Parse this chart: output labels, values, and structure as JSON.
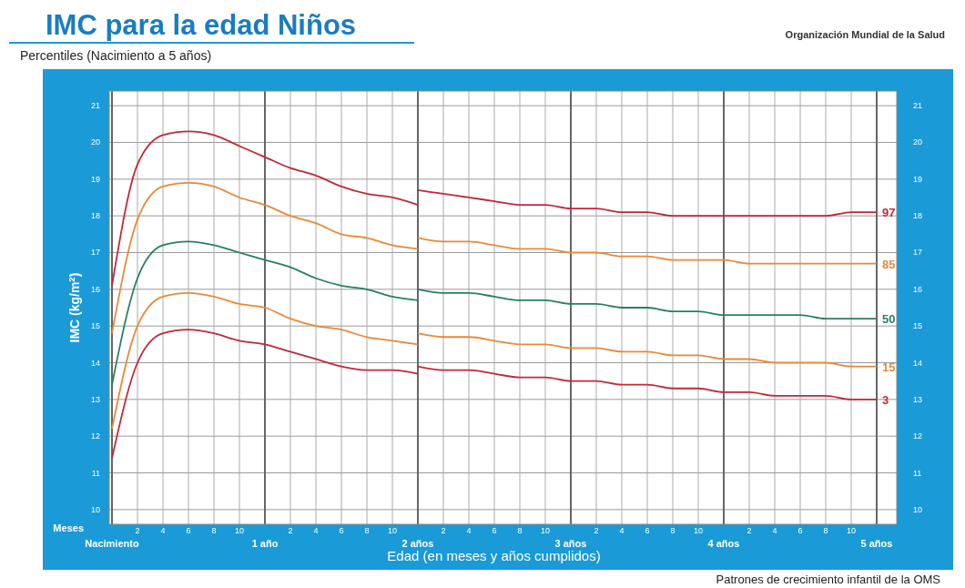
{
  "chart_data": {
    "type": "line",
    "title": "IMC para la edad Niños",
    "subtitle": "Percentiles (Nacimiento a 5 años)",
    "xlabel": "Edad (en meses y años cumplidos)",
    "ylabel": "IMC (kg/m$^{2}$)",
    "x2label": "Meses",
    "annotations": [
      "Patrones de crecimiento infantil de la OMS",
      "Organización Mundial de la Salud"
    ],
    "categories": [
      null,
      "2",
      "4",
      "6",
      "8",
      "10",
      null,
      "2",
      "4",
      "6",
      "8",
      "10",
      null,
      "2",
      "4",
      "6",
      "8",
      "10",
      null,
      "2",
      "4",
      "6",
      "8",
      "10",
      null,
      "2",
      "4",
      "6",
      "8",
      "10",
      null
    ],
    "x2lim": [
      0,
      5
    ],
    "x2ticks": [
      {
        "value": 0,
        "label": "Nacimiento"
      },
      {
        "value": 1,
        "label": "1 año"
      },
      {
        "value": 2,
        "label": "2 años"
      },
      {
        "value": 3,
        "label": "3 años"
      },
      {
        "value": 4,
        "label": "4 años"
      },
      {
        "value": 5,
        "label": "5 años"
      }
    ],
    "ylim": [
      9.6,
      21.4
    ],
    "y2lim": [
      9.6,
      21.4
    ],
    "yticks": [
      10,
      11,
      12,
      13,
      14,
      15,
      16,
      17,
      18,
      19,
      20,
      21
    ],
    "y2ticks": [
      10,
      11,
      12,
      13,
      14,
      15,
      16,
      17,
      18,
      19,
      20,
      21
    ],
    "grid": true,
    "marker": "none",
    "line_style": "solid",
    "series": [
      {
        "color": "#c0283c",
        "values": [
          16.1,
          19.4,
          20.2,
          20.3,
          20.2,
          19.9,
          19.6,
          19.3,
          19.1,
          18.8,
          18.6,
          18.5,
          18.3,
          null,
          null,
          null,
          null,
          null,
          null,
          null,
          null,
          null,
          null,
          null,
          null,
          null,
          null,
          null,
          null,
          null,
          null
        ]
      },
      {
        "name": "97",
        "color": "#c0283c",
        "values": [
          null,
          null,
          null,
          null,
          null,
          null,
          null,
          null,
          null,
          null,
          null,
          null,
          18.7,
          18.6,
          18.5,
          18.4,
          18.3,
          18.3,
          18.2,
          18.2,
          18.1,
          18.1,
          18.0,
          18.0,
          18.0,
          18.0,
          18.0,
          18.0,
          18.0,
          18.1,
          18.1
        ]
      },
      {
        "color": "#e8893a",
        "values": [
          14.8,
          17.9,
          18.8,
          18.9,
          18.8,
          18.5,
          18.3,
          18.0,
          17.8,
          17.5,
          17.4,
          17.2,
          17.1,
          null,
          null,
          null,
          null,
          null,
          null,
          null,
          null,
          null,
          null,
          null,
          null,
          null,
          null,
          null,
          null,
          null,
          null
        ]
      },
      {
        "name": "85",
        "color": "#e8893a",
        "values": [
          null,
          null,
          null,
          null,
          null,
          null,
          null,
          null,
          null,
          null,
          null,
          null,
          17.4,
          17.3,
          17.3,
          17.2,
          17.1,
          17.1,
          17.0,
          17.0,
          16.9,
          16.9,
          16.8,
          16.8,
          16.8,
          16.7,
          16.7,
          16.7,
          16.7,
          16.7,
          16.7
        ]
      },
      {
        "color": "#2a7f5f",
        "values": [
          13.4,
          16.3,
          17.2,
          17.3,
          17.2,
          17.0,
          16.8,
          16.6,
          16.3,
          16.1,
          16.0,
          15.8,
          15.7,
          null,
          null,
          null,
          null,
          null,
          null,
          null,
          null,
          null,
          null,
          null,
          null,
          null,
          null,
          null,
          null,
          null,
          null
        ]
      },
      {
        "name": "50",
        "color": "#2a7f5f",
        "values": [
          null,
          null,
          null,
          null,
          null,
          null,
          null,
          null,
          null,
          null,
          null,
          null,
          16.0,
          15.9,
          15.9,
          15.8,
          15.7,
          15.7,
          15.6,
          15.6,
          15.5,
          15.5,
          15.4,
          15.4,
          15.3,
          15.3,
          15.3,
          15.3,
          15.2,
          15.2,
          15.2
        ]
      },
      {
        "color": "#e8893a",
        "values": [
          12.2,
          15.0,
          15.8,
          15.9,
          15.8,
          15.6,
          15.5,
          15.2,
          15.0,
          14.9,
          14.7,
          14.6,
          14.5,
          null,
          null,
          null,
          null,
          null,
          null,
          null,
          null,
          null,
          null,
          null,
          null,
          null,
          null,
          null,
          null,
          null,
          null
        ]
      },
      {
        "name": "15",
        "color": "#e8893a",
        "values": [
          null,
          null,
          null,
          null,
          null,
          null,
          null,
          null,
          null,
          null,
          null,
          null,
          14.8,
          14.7,
          14.7,
          14.6,
          14.5,
          14.5,
          14.4,
          14.4,
          14.3,
          14.3,
          14.2,
          14.2,
          14.1,
          14.1,
          14.0,
          14.0,
          14.0,
          13.9,
          13.9
        ]
      },
      {
        "color": "#c0283c",
        "values": [
          11.4,
          14.0,
          14.8,
          14.9,
          14.8,
          14.6,
          14.5,
          14.3,
          14.1,
          13.9,
          13.8,
          13.8,
          13.7,
          null,
          null,
          null,
          null,
          null,
          null,
          null,
          null,
          null,
          null,
          null,
          null,
          null,
          null,
          null,
          null,
          null,
          null
        ]
      },
      {
        "name": "3",
        "color": "#c0283c",
        "values": [
          null,
          null,
          null,
          null,
          null,
          null,
          null,
          null,
          null,
          null,
          null,
          null,
          13.9,
          13.8,
          13.8,
          13.7,
          13.6,
          13.6,
          13.5,
          13.5,
          13.4,
          13.4,
          13.3,
          13.3,
          13.2,
          13.2,
          13.1,
          13.1,
          13.1,
          13.0,
          13.0
        ]
      }
    ]
  }
}
